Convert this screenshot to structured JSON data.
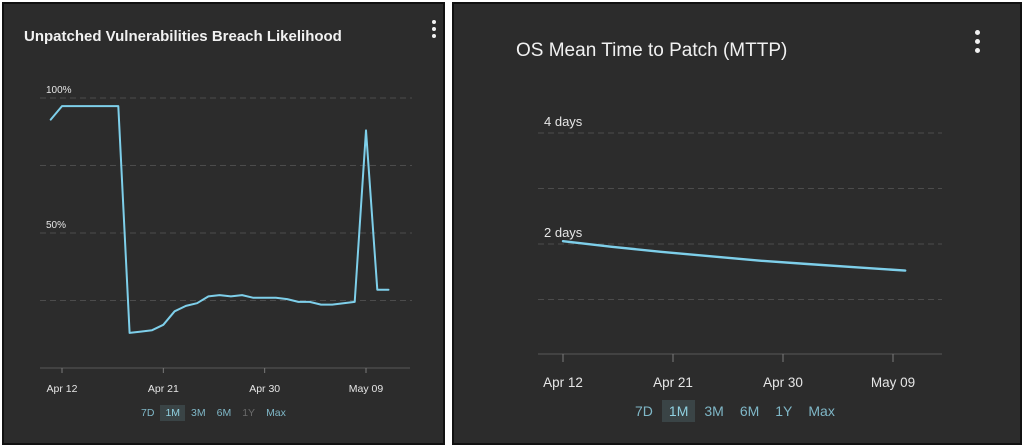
{
  "chart_data": [
    {
      "type": "line",
      "title": "Unpatched Vulnerabilities Breach Likelihood",
      "x_tick_labels": [
        "Apr 12",
        "Apr 21",
        "Apr 30",
        "May 09"
      ],
      "y_tick_labels": [
        "100%",
        "50%"
      ],
      "ylim": [
        0,
        100
      ],
      "grid": true,
      "color": "#7ecfea",
      "series": [
        {
          "x": [
            "Apr 11",
            "Apr 12",
            "Apr 13",
            "Apr 14",
            "Apr 15",
            "Apr 16",
            "Apr 17",
            "Apr 18",
            "Apr 19",
            "Apr 20",
            "Apr 21",
            "Apr 22",
            "Apr 23",
            "Apr 24",
            "Apr 25",
            "Apr 26",
            "Apr 27",
            "Apr 28",
            "Apr 29",
            "Apr 30",
            "May 01",
            "May 02",
            "May 03",
            "May 04",
            "May 05",
            "May 06",
            "May 07",
            "May 08",
            "May 09",
            "May 10",
            "May 11"
          ],
          "values": [
            92,
            97,
            97,
            97,
            97,
            97,
            97,
            13,
            13.5,
            14,
            16,
            21,
            23,
            24,
            26.5,
            27,
            26.5,
            27,
            26,
            26,
            26,
            25.5,
            24.5,
            24.5,
            23.5,
            23.5,
            24,
            24.5,
            88,
            29,
            29
          ]
        }
      ]
    },
    {
      "type": "line",
      "title": "OS Mean Time to Patch (MTTP)",
      "x_tick_labels": [
        "Apr 12",
        "Apr 21",
        "Apr 30",
        "May 09"
      ],
      "y_tick_labels": [
        "4 days",
        "2 days"
      ],
      "ylim": [
        0,
        4.4
      ],
      "grid": true,
      "color": "#7ecfea",
      "series": [
        {
          "x": [
            "Apr 12",
            "Apr 16",
            "Apr 20",
            "Apr 24",
            "Apr 28",
            "May 02",
            "May 06",
            "May 10"
          ],
          "values": [
            2.05,
            1.95,
            1.86,
            1.78,
            1.7,
            1.64,
            1.58,
            1.52
          ]
        }
      ]
    }
  ],
  "left_ranges": [
    {
      "label": "7D",
      "state": "normal"
    },
    {
      "label": "1M",
      "state": "active"
    },
    {
      "label": "3M",
      "state": "normal"
    },
    {
      "label": "6M",
      "state": "normal"
    },
    {
      "label": "1Y",
      "state": "disabled"
    },
    {
      "label": "Max",
      "state": "normal"
    }
  ],
  "right_ranges": [
    {
      "label": "7D",
      "state": "normal"
    },
    {
      "label": "1M",
      "state": "active"
    },
    {
      "label": "3M",
      "state": "normal"
    },
    {
      "label": "6M",
      "state": "normal"
    },
    {
      "label": "1Y",
      "state": "normal"
    },
    {
      "label": "Max",
      "state": "normal"
    }
  ]
}
